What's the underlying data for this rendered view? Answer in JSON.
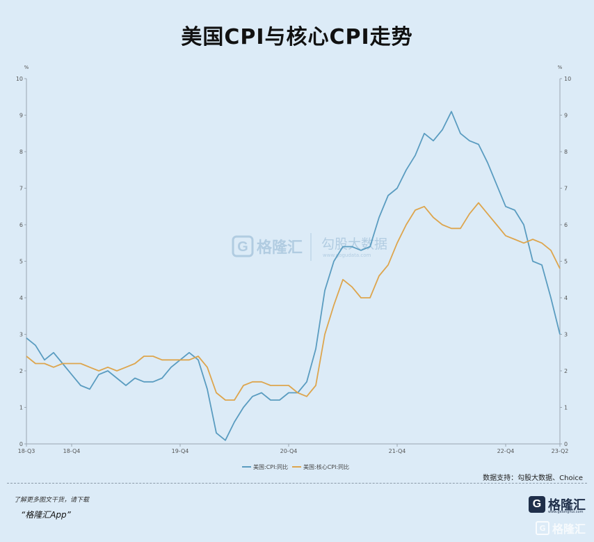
{
  "title": "美国CPI与核心CPI走势",
  "source": "数据支持：勾股大数据、Choice",
  "promo_line1": "了解更多图文干货，请下载",
  "promo_line2": "“格隆汇App”",
  "logo_text": "格隆汇",
  "logo_sub": "www.gelonghui.com",
  "watermark_left": "格隆汇",
  "watermark_right": "勾股大数据",
  "watermark_right_sub": "www.gogudata.com",
  "bottom_watermark": "格隆汇",
  "chart_data": {
    "type": "line",
    "y_unit_left": "%",
    "y_unit_right": "%",
    "ylim": [
      0,
      10
    ],
    "yticks": [
      0,
      1,
      2,
      3,
      4,
      5,
      6,
      7,
      8,
      9,
      10
    ],
    "x_tick_labels": [
      "18-Q3",
      "18-Q4",
      "19-Q4",
      "20-Q4",
      "21-Q4",
      "22-Q4",
      "23-Q2"
    ],
    "x_tick_index": [
      0,
      5,
      17,
      29,
      41,
      53,
      59
    ],
    "grid": false,
    "legend": "bottom-center",
    "series": [
      {
        "name": "美国:CPI:同比",
        "color": "#5a9cc0",
        "values": [
          2.9,
          2.7,
          2.3,
          2.5,
          2.2,
          1.9,
          1.6,
          1.5,
          1.9,
          2.0,
          1.8,
          1.6,
          1.8,
          1.7,
          1.7,
          1.8,
          2.1,
          2.3,
          2.5,
          2.3,
          1.5,
          0.3,
          0.1,
          0.6,
          1.0,
          1.3,
          1.4,
          1.2,
          1.2,
          1.4,
          1.4,
          1.7,
          2.6,
          4.2,
          5.0,
          5.4,
          5.4,
          5.3,
          5.4,
          6.2,
          6.8,
          7.0,
          7.5,
          7.9,
          8.5,
          8.3,
          8.6,
          9.1,
          8.5,
          8.3,
          8.2,
          7.7,
          7.1,
          6.5,
          6.4,
          6.0,
          5.0,
          4.9,
          4.0,
          3.0
        ]
      },
      {
        "name": "美国:核心CPI:同比",
        "color": "#dda54d",
        "values": [
          2.4,
          2.2,
          2.2,
          2.1,
          2.2,
          2.2,
          2.2,
          2.1,
          2.0,
          2.1,
          2.0,
          2.1,
          2.2,
          2.4,
          2.4,
          2.3,
          2.3,
          2.3,
          2.3,
          2.4,
          2.1,
          1.4,
          1.2,
          1.2,
          1.6,
          1.7,
          1.7,
          1.6,
          1.6,
          1.6,
          1.4,
          1.3,
          1.6,
          3.0,
          3.8,
          4.5,
          4.3,
          4.0,
          4.0,
          4.6,
          4.9,
          5.5,
          6.0,
          6.4,
          6.5,
          6.2,
          6.0,
          5.9,
          5.9,
          6.3,
          6.6,
          6.3,
          6.0,
          5.7,
          5.6,
          5.5,
          5.6,
          5.5,
          5.3,
          4.8
        ]
      }
    ]
  }
}
